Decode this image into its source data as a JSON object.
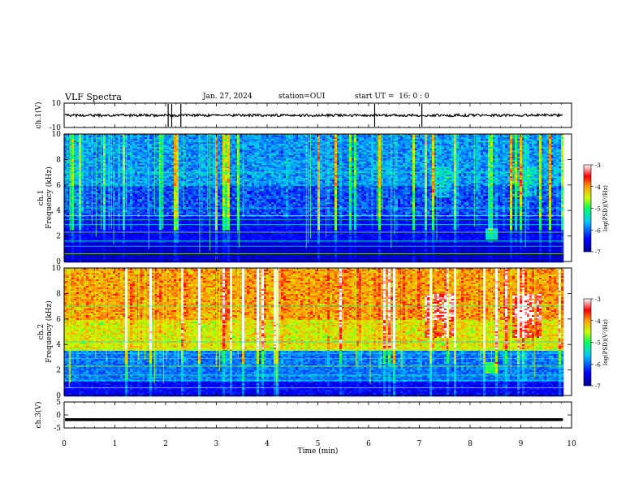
{
  "header": {
    "title": "VLF Spectra",
    "date": "Jan. 27, 2024",
    "station": "station=OUI",
    "start": "start UT =  16: 0 : 0"
  },
  "chart_data": [
    {
      "type": "line",
      "name": "ch1-waveform",
      "ylabel": "ch.1(V)",
      "ylim": [
        -10,
        10
      ],
      "y_ticks": [
        "10",
        "-10"
      ],
      "baseline": 0,
      "spikes_x_min": [
        2.05,
        2.12,
        2.3,
        6.12,
        7.05
      ],
      "xlim": [
        0,
        10
      ]
    },
    {
      "type": "heatmap",
      "name": "ch1-spectrogram",
      "ylabel": "ch.1\nFrequency (kHz)",
      "ylim": [
        0,
        10
      ],
      "y_ticks": [
        "0",
        "2",
        "4",
        "6",
        "8",
        "10"
      ],
      "xlim": [
        0,
        9.83
      ],
      "colorbar": {
        "label": "log(PSD)(V²/Hz)",
        "range": [
          -7,
          -3
        ],
        "ticks": [
          "-3",
          "-4",
          "-5",
          "-6",
          "-7"
        ]
      }
    },
    {
      "type": "heatmap",
      "name": "ch2-spectrogram",
      "ylabel": "ch.2\nFrequency (kHz)",
      "ylim": [
        0,
        10
      ],
      "y_ticks": [
        "0",
        "2",
        "4",
        "6",
        "8",
        "10"
      ],
      "xlim": [
        0,
        9.83
      ],
      "colorbar": {
        "label": "log(PSD)(V²/Hz)",
        "range": [
          -7,
          -3
        ],
        "ticks": [
          "-3",
          "-4",
          "-5",
          "-6",
          "-7"
        ]
      }
    },
    {
      "type": "line",
      "name": "ch3-waveform",
      "ylabel": "ch.3(V)",
      "ylim": [
        -5,
        5
      ],
      "y_ticks": [
        "5",
        "0",
        "-5"
      ],
      "baseline": -1.8,
      "xlim": [
        0,
        10
      ]
    }
  ],
  "x_axis": {
    "label": "Time (min)",
    "ticks": [
      "0",
      "1",
      "2",
      "3",
      "4",
      "5",
      "6",
      "7",
      "8",
      "9",
      "10"
    ]
  },
  "colors": {
    "background": "#ffffff",
    "axis": "#000000",
    "trace": "#000000"
  }
}
